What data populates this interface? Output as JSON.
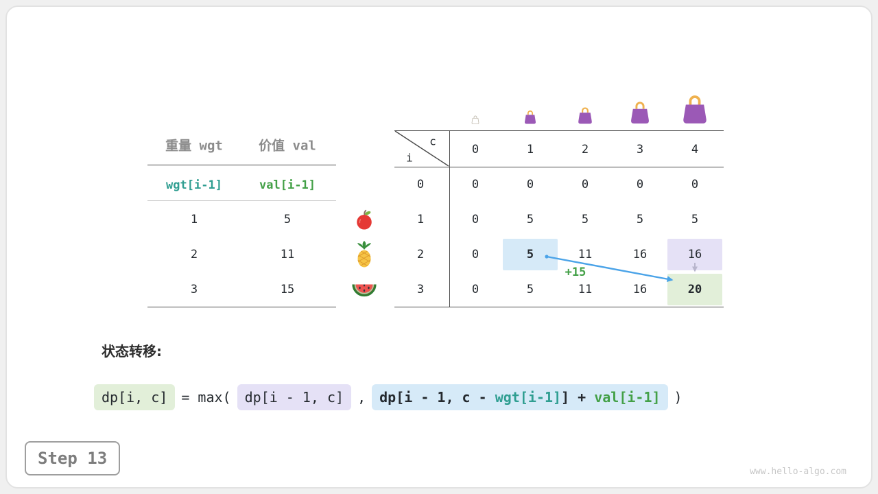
{
  "frame": {
    "step_label": "Step 13",
    "watermark": "www.hello-algo.com"
  },
  "item_table": {
    "col_headers": [
      "重量 wgt",
      "价值 val"
    ],
    "symbol_row": {
      "wgt": "wgt[i-1]",
      "val": "val[i-1]"
    },
    "rows": [
      {
        "wgt": "1",
        "val": "5",
        "icon": "apple-icon"
      },
      {
        "wgt": "2",
        "val": "11",
        "icon": "pineapple-icon"
      },
      {
        "wgt": "3",
        "val": "15",
        "icon": "watermelon-icon"
      }
    ]
  },
  "dp_table": {
    "corner": {
      "row_label": "i",
      "col_label": "c"
    },
    "col_headers": [
      "0",
      "1",
      "2",
      "3",
      "4"
    ],
    "bag_icons": [
      "bag-empty-icon",
      "bag-size-1-icon",
      "bag-size-2-icon",
      "bag-size-3-icon",
      "bag-size-4-icon"
    ],
    "rows": [
      {
        "header": "0",
        "cells": [
          "0",
          "0",
          "0",
          "0",
          "0"
        ]
      },
      {
        "header": "1",
        "cells": [
          "0",
          "5",
          "5",
          "5",
          "5"
        ]
      },
      {
        "header": "2",
        "cells": [
          "0",
          "5",
          "11",
          "16",
          "16"
        ]
      },
      {
        "header": "3",
        "cells": [
          "0",
          "5",
          "11",
          "16",
          "20"
        ]
      }
    ],
    "highlights": [
      {
        "row": 2,
        "col": 1,
        "style": "source-blue",
        "bold": true
      },
      {
        "row": 2,
        "col": 4,
        "style": "prev-purple",
        "bold": false
      },
      {
        "row": 3,
        "col": 4,
        "style": "result-green",
        "bold": true
      }
    ],
    "transfer_annotation": "+15"
  },
  "transition": {
    "label": "状态转移:",
    "lhs": "dp[i, c]",
    "operator": "= max(",
    "option1": "dp[i - 1, c]",
    "separator": ",",
    "option2_prefix": "dp[i - 1, c - ",
    "option2_wgt": "wgt[i-1]",
    "option2_infix": "] + ",
    "option2_val": "val[i-1]",
    "closing": ")"
  },
  "colors": {
    "teal": "#2f9e91",
    "green": "#43a047",
    "cell_blue_bg": "#d6eaf8",
    "cell_purple_bg": "#e5e1f6",
    "cell_green_bg": "#e2efd9",
    "arrow_blue": "#4aa3e8"
  }
}
